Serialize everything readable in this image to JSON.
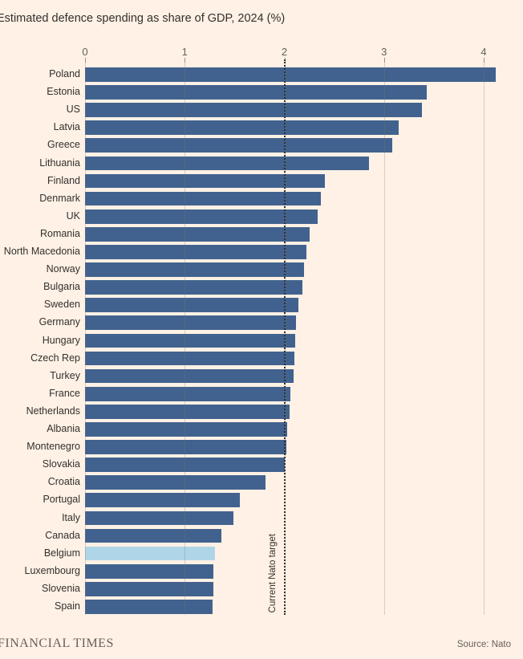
{
  "chart_data": {
    "type": "bar",
    "orientation": "horizontal",
    "title": "Estimated defence spending as share of GDP, 2024 (%)",
    "categories": [
      "Poland",
      "Estonia",
      "US",
      "Latvia",
      "Greece",
      "Lithuania",
      "Finland",
      "Denmark",
      "UK",
      "Romania",
      "North Macedonia",
      "Norway",
      "Bulgaria",
      "Sweden",
      "Germany",
      "Hungary",
      "Czech Rep",
      "Turkey",
      "France",
      "Netherlands",
      "Albania",
      "Montenegro",
      "Slovakia",
      "Croatia",
      "Portugal",
      "Italy",
      "Canada",
      "Belgium",
      "Luxembourg",
      "Slovenia",
      "Spain"
    ],
    "values": [
      4.12,
      3.43,
      3.38,
      3.15,
      3.08,
      2.85,
      2.41,
      2.37,
      2.33,
      2.25,
      2.22,
      2.2,
      2.18,
      2.14,
      2.12,
      2.11,
      2.1,
      2.09,
      2.06,
      2.05,
      2.03,
      2.02,
      2.0,
      1.81,
      1.55,
      1.49,
      1.37,
      1.3,
      1.29,
      1.29,
      1.28
    ],
    "x_ticks": [
      0,
      1,
      2,
      3,
      4
    ],
    "xlim": [
      0,
      4.4
    ],
    "grid": true,
    "legend": "none",
    "bar_color": "#41628E",
    "highlight": {
      "category": "Belgium",
      "index": 27,
      "color": "#AFD6E8"
    },
    "target_line": {
      "value": 2,
      "label": "Current Nato target",
      "style": "dotted-black"
    }
  },
  "footer": {
    "brand": "FINANCIAL TIMES",
    "source": "Source: Nato"
  }
}
